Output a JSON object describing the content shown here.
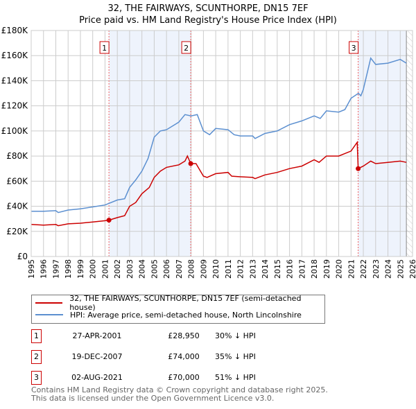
{
  "title_line1": "32, THE FAIRWAYS, SCUNTHORPE, DN15 7EF",
  "title_line2": "Price paid vs. HM Land Registry's House Price Index (HPI)",
  "chart_data": {
    "type": "line",
    "title": "32, THE FAIRWAYS, SCUNTHORPE, DN15 7EF — Price paid vs. HM Land Registry's House Price Index (HPI)",
    "xlim": [
      1995,
      2026
    ],
    "ylim": [
      0,
      180000
    ],
    "x_ticks": [
      1995,
      1996,
      1997,
      1998,
      1999,
      2000,
      2001,
      2002,
      2003,
      2004,
      2005,
      2006,
      2007,
      2008,
      2009,
      2010,
      2011,
      2012,
      2013,
      2014,
      2015,
      2016,
      2017,
      2018,
      2019,
      2020,
      2021,
      2022,
      2023,
      2024,
      2025,
      2026
    ],
    "y_ticks": [
      0,
      20000,
      40000,
      60000,
      80000,
      100000,
      120000,
      140000,
      160000,
      180000
    ],
    "y_tick_labels": [
      "£0",
      "£20K",
      "£40K",
      "£60K",
      "£80K",
      "£100K",
      "£120K",
      "£140K",
      "£160K",
      "£180K"
    ],
    "grid": true,
    "shaded_ranges": [
      [
        2001.32,
        2007.97
      ],
      [
        2021.58,
        2025.5
      ]
    ],
    "data_end": 2025.5,
    "series": [
      {
        "name": "32, THE FAIRWAYS, SCUNTHORPE, DN15 7EF (semi-detached house)",
        "color": "#cc0000",
        "x": [
          1995,
          1996,
          1997,
          1997.2,
          1998,
          1999,
          2000,
          2001,
          2001.32,
          2002,
          2002.6,
          2003,
          2003.5,
          2004,
          2004.6,
          2005,
          2005.5,
          2006,
          2007,
          2007.5,
          2007.7,
          2007.97,
          2008.4,
          2009,
          2009.3,
          2010,
          2011,
          2011.3,
          2012,
          2013,
          2013.2,
          2014,
          2015,
          2016,
          2017,
          2018,
          2018.4,
          2019,
          2019.4,
          2020,
          2021,
          2021.5,
          2021.58,
          2022,
          2022.6,
          2023,
          2024,
          2025,
          2025.5
        ],
        "y": [
          25500,
          25000,
          25500,
          24500,
          26000,
          26500,
          27500,
          28500,
          28950,
          31000,
          32500,
          40000,
          43000,
          50000,
          55000,
          63000,
          68000,
          71000,
          73000,
          76000,
          80000,
          74000,
          74000,
          64000,
          63000,
          66000,
          67000,
          64000,
          63500,
          63000,
          62000,
          65000,
          67000,
          70000,
          72000,
          77000,
          75000,
          80000,
          80000,
          80000,
          84000,
          91000,
          70000,
          72000,
          76000,
          74000,
          75000,
          76000,
          75000
        ]
      },
      {
        "name": "HPI: Average price, semi-detached house, North Lincolnshire",
        "color": "#5b8fd0",
        "x": [
          1995,
          1996,
          1997,
          1997.2,
          1998,
          1999,
          2000,
          2001,
          2002,
          2002.6,
          2003,
          2003.5,
          2004,
          2004.5,
          2005,
          2005.5,
          2006,
          2007,
          2007.5,
          2008,
          2008.5,
          2009,
          2009.5,
          2010,
          2011,
          2011.5,
          2012,
          2013,
          2013.2,
          2014,
          2015,
          2016,
          2017,
          2018,
          2018.5,
          2019,
          2020,
          2020.5,
          2021,
          2021.6,
          2021.8,
          2022,
          2022.6,
          2023,
          2024,
          2025,
          2025.5
        ],
        "y": [
          36000,
          36000,
          36500,
          35000,
          37000,
          38000,
          39500,
          41000,
          45000,
          46000,
          55000,
          61000,
          68000,
          78000,
          95000,
          100000,
          101000,
          107000,
          113000,
          112000,
          113000,
          100000,
          97000,
          102000,
          101000,
          97000,
          96000,
          96000,
          94000,
          98000,
          100000,
          105000,
          108000,
          112000,
          110000,
          116000,
          115000,
          117000,
          126000,
          130000,
          128000,
          133000,
          158000,
          153000,
          154000,
          157000,
          154000
        ]
      }
    ],
    "sales": [
      {
        "label": "1",
        "x": 2001.32,
        "price": 28950
      },
      {
        "label": "2",
        "x": 2007.97,
        "price": 74000
      },
      {
        "label": "3",
        "x": 2021.58,
        "price": 70000
      }
    ]
  },
  "legend": {
    "property_label": "32, THE FAIRWAYS, SCUNTHORPE, DN15 7EF (semi-detached house)",
    "hpi_label": "HPI: Average price, semi-detached house, North Lincolnshire"
  },
  "sales_table": [
    {
      "num": "1",
      "date": "27-APR-2001",
      "price": "£28,950",
      "hpi": "30% ↓ HPI"
    },
    {
      "num": "2",
      "date": "19-DEC-2007",
      "price": "£74,000",
      "hpi": "35% ↓ HPI"
    },
    {
      "num": "3",
      "date": "02-AUG-2021",
      "price": "£70,000",
      "hpi": "51% ↓ HPI"
    }
  ],
  "footer": {
    "line1": "Contains HM Land Registry data © Crown copyright and database right 2025.",
    "line2": "This data is licensed under the Open Government Licence v3.0."
  }
}
